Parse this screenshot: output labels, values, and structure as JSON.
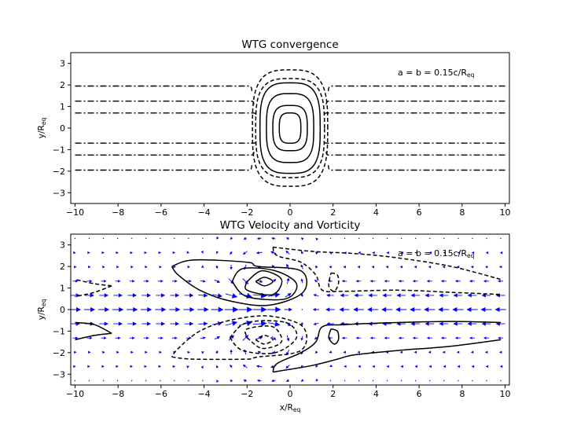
{
  "chart_data": [
    {
      "type": "contour",
      "title": "WTG convergence",
      "ylabel": "y/R",
      "ylabel_sub": "eq",
      "annotation": "a = b = 0.15c/R",
      "annotation_sub": "eq",
      "xlim": [
        -10.2,
        10.2
      ],
      "ylim": [
        -3.5,
        3.5
      ],
      "xticks": [
        -10,
        -8,
        -6,
        -4,
        -2,
        0,
        2,
        4,
        6,
        8,
        10
      ],
      "yticks": [
        -3,
        -2,
        -1,
        0,
        1,
        2,
        3
      ],
      "center_contours": [
        {
          "style": "solid",
          "semi_axes": [
            1.4,
            2.1
          ]
        },
        {
          "style": "solid",
          "semi_axes": [
            1.1,
            1.6
          ]
        },
        {
          "style": "solid",
          "semi_axes": [
            0.8,
            1.05
          ]
        },
        {
          "style": "solid",
          "semi_axes": [
            0.5,
            0.7
          ]
        },
        {
          "style": "dashed",
          "semi_axes": [
            1.75,
            2.7
          ]
        },
        {
          "style": "dashed",
          "semi_axes": [
            1.6,
            2.3
          ]
        }
      ],
      "bands": [
        {
          "style": "dashdot",
          "y": 1.95,
          "x_inner": 1.9
        },
        {
          "style": "dashdot",
          "y": 1.25,
          "x_inner": 1.8
        },
        {
          "style": "dashdot",
          "y": 0.7,
          "x_inner": 1.7
        },
        {
          "style": "dashdot",
          "y": -0.7,
          "x_inner": 1.7
        },
        {
          "style": "dashdot",
          "y": -1.25,
          "x_inner": 1.8
        },
        {
          "style": "dashdot",
          "y": -1.95,
          "x_inner": 1.9
        }
      ]
    },
    {
      "type": "vector_contour",
      "title": "WTG Velocity and Vorticity",
      "xlabel": "x/R",
      "xlabel_sub": "eq",
      "ylabel": "y/R",
      "ylabel_sub": "eq",
      "annotation": "a = b = 0.15c/R",
      "annotation_sub": "eq",
      "xlim": [
        -10.2,
        10.2
      ],
      "ylim": [
        -3.5,
        3.5
      ],
      "xticks": [
        -10,
        -8,
        -6,
        -4,
        -2,
        0,
        2,
        4,
        6,
        8,
        10
      ],
      "yticks": [
        -3,
        -2,
        -1,
        0,
        1,
        2,
        3
      ],
      "arrow_color": "#0000ff",
      "vortex_centers": [
        {
          "x": -1.2,
          "y": 1.4,
          "sign": "positive"
        },
        {
          "x": -1.2,
          "y": -1.4,
          "sign": "negative"
        }
      ],
      "contours": [
        {
          "style": "solid",
          "points": [
            [
              -5.5,
              2.0
            ],
            [
              -4.5,
              2.3
            ],
            [
              -2.0,
              2.2
            ],
            [
              -1.5,
              2.0
            ],
            [
              0.5,
              1.8
            ],
            [
              0.6,
              0.8
            ],
            [
              -1.0,
              0.2
            ],
            [
              -2.8,
              0.4
            ],
            [
              -4.2,
              0.9
            ],
            [
              -5.2,
              1.6
            ],
            [
              -5.5,
              2.0
            ]
          ]
        },
        {
          "style": "solid",
          "points": [
            [
              -2.7,
              1.3
            ],
            [
              -2.2,
              1.9
            ],
            [
              -0.7,
              1.8
            ],
            [
              0.3,
              1.2
            ],
            [
              -0.2,
              0.5
            ],
            [
              -2.0,
              0.6
            ],
            [
              -2.7,
              1.3
            ]
          ]
        },
        {
          "style": "solid",
          "points": [
            [
              -2.0,
              1.3
            ],
            [
              -1.3,
              1.8
            ],
            [
              -0.4,
              1.4
            ],
            [
              -0.8,
              0.7
            ],
            [
              -2.0,
              0.9
            ],
            [
              -2.0,
              1.3
            ]
          ]
        },
        {
          "style": "solid",
          "points": [
            [
              -1.6,
              1.3
            ],
            [
              -1.2,
              1.5
            ],
            [
              -0.8,
              1.3
            ],
            [
              -1.2,
              1.1
            ],
            [
              -1.6,
              1.3
            ]
          ]
        },
        {
          "style": "dashed",
          "points": [
            [
              -5.5,
              -2.2
            ],
            [
              -4.5,
              -2.3
            ],
            [
              -2.0,
              -2.3
            ],
            [
              -1.5,
              -2.2
            ],
            [
              0.5,
              -1.9
            ],
            [
              0.6,
              -0.8
            ],
            [
              -1.0,
              -0.3
            ],
            [
              -2.8,
              -0.5
            ],
            [
              -4.2,
              -1.0
            ],
            [
              -5.2,
              -1.8
            ],
            [
              -5.5,
              -2.2
            ]
          ]
        },
        {
          "style": "dashed",
          "points": [
            [
              -2.8,
              -1.3
            ],
            [
              -2.2,
              -1.9
            ],
            [
              -0.7,
              -2.0
            ],
            [
              0.3,
              -1.3
            ],
            [
              -0.2,
              -0.6
            ],
            [
              -2.0,
              -0.6
            ],
            [
              -2.8,
              -1.3
            ]
          ]
        },
        {
          "style": "dashed",
          "points": [
            [
              -2.0,
              -1.3
            ],
            [
              -1.3,
              -1.8
            ],
            [
              -0.4,
              -1.5
            ],
            [
              -0.8,
              -0.8
            ],
            [
              -2.0,
              -0.9
            ],
            [
              -2.0,
              -1.3
            ]
          ]
        },
        {
          "style": "dashed",
          "points": [
            [
              -1.6,
              -1.4
            ],
            [
              -1.2,
              -1.6
            ],
            [
              -0.8,
              -1.4
            ],
            [
              -1.2,
              -1.2
            ],
            [
              -1.6,
              -1.4
            ]
          ]
        },
        {
          "style": "dashed",
          "points": [
            [
              -8.3,
              1.1
            ],
            [
              -9.1,
              1.2
            ],
            [
              -10.0,
              1.4
            ]
          ]
        },
        {
          "style": "dashed",
          "points": [
            [
              -8.3,
              1.1
            ],
            [
              -9.1,
              0.8
            ],
            [
              -10.0,
              0.6
            ]
          ]
        },
        {
          "style": "solid",
          "points": [
            [
              -8.3,
              -1.1
            ],
            [
              -9.1,
              -1.2
            ],
            [
              -10.0,
              -1.4
            ]
          ]
        },
        {
          "style": "solid",
          "points": [
            [
              -8.3,
              -1.1
            ],
            [
              -9.1,
              -0.7
            ],
            [
              -10.0,
              -0.6
            ]
          ]
        },
        {
          "style": "dashed",
          "points": [
            [
              -0.8,
              2.9
            ],
            [
              1.0,
              2.7
            ],
            [
              3.0,
              2.6
            ],
            [
              5.0,
              2.4
            ],
            [
              7.5,
              2.0
            ],
            [
              9.8,
              1.4
            ]
          ]
        },
        {
          "style": "dashed",
          "points": [
            [
              -0.8,
              2.9
            ],
            [
              -0.6,
              2.5
            ],
            [
              0.5,
              2.2
            ],
            [
              1.2,
              1.6
            ],
            [
              1.5,
              0.9
            ],
            [
              2.5,
              0.85
            ],
            [
              5.0,
              0.9
            ],
            [
              7.5,
              0.8
            ],
            [
              9.8,
              0.7
            ]
          ]
        },
        {
          "style": "solid",
          "points": [
            [
              -0.8,
              -2.9
            ],
            [
              1.0,
              -2.6
            ],
            [
              2.2,
              -2.3
            ],
            [
              3.0,
              -2.1
            ],
            [
              5.0,
              -1.9
            ],
            [
              7.5,
              -1.7
            ],
            [
              9.8,
              -1.4
            ]
          ]
        },
        {
          "style": "solid",
          "points": [
            [
              -0.8,
              -2.9
            ],
            [
              -0.6,
              -2.5
            ],
            [
              0.5,
              -2.0
            ],
            [
              1.2,
              -1.5
            ],
            [
              1.5,
              -0.8
            ],
            [
              2.5,
              -0.7
            ],
            [
              5.0,
              -0.6
            ],
            [
              7.5,
              -0.55
            ],
            [
              9.8,
              -0.6
            ]
          ]
        },
        {
          "style": "dashed",
          "points": [
            [
              1.9,
              1.7
            ],
            [
              2.2,
              1.6
            ],
            [
              2.25,
              1.2
            ],
            [
              2.05,
              0.85
            ],
            [
              1.8,
              1.1
            ],
            [
              1.9,
              1.7
            ]
          ]
        },
        {
          "style": "solid",
          "points": [
            [
              1.9,
              -0.9
            ],
            [
              2.2,
              -1.0
            ],
            [
              2.25,
              -1.4
            ],
            [
              2.05,
              -1.6
            ],
            [
              1.8,
              -1.3
            ],
            [
              1.9,
              -0.9
            ]
          ]
        }
      ]
    }
  ]
}
